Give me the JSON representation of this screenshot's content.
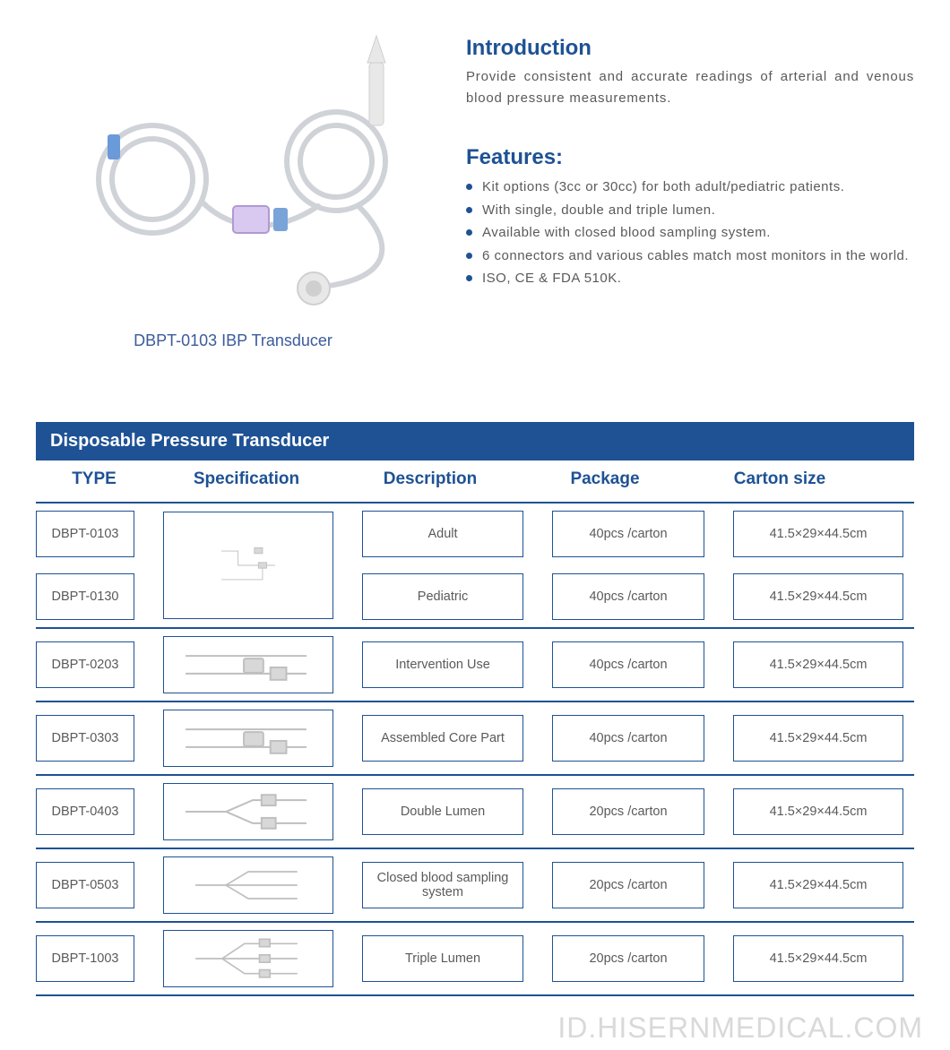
{
  "colors": {
    "primary": "#1e5294",
    "text": "#5a5a5a",
    "border": "#1e5294",
    "bg": "#ffffff",
    "watermark": "#d9d9d9"
  },
  "product": {
    "caption": "DBPT-0103 IBP Transducer"
  },
  "intro": {
    "title": "Introduction",
    "text": "Provide consistent and accurate readings of arterial and venous blood pressure measurements."
  },
  "features": {
    "title": "Features:",
    "items": [
      "Kit options (3cc or 30cc) for both adult/pediatric patients.",
      "With single, double and triple lumen.",
      "Available with closed blood sampling system.",
      "6 connectors and various cables match most monitors in the world.",
      "ISO, CE & FDA 510K."
    ]
  },
  "table": {
    "title": "Disposable Pressure Transducer",
    "headers": {
      "type": "TYPE",
      "spec": "Specification",
      "desc": "Description",
      "pkg": "Package",
      "carton": "Carton  size"
    },
    "rows": [
      {
        "types": [
          "DBPT-0103",
          "DBPT-0130"
        ],
        "spec_diagram": "single",
        "descs": [
          "Adult",
          "Pediatric"
        ],
        "pkgs": [
          "40pcs /carton",
          "40pcs /carton"
        ],
        "cartons": [
          "41.5×29×44.5cm",
          "41.5×29×44.5cm"
        ],
        "tall": true
      },
      {
        "types": [
          "DBPT-0203"
        ],
        "spec_diagram": "short",
        "descs": [
          "Intervention Use"
        ],
        "pkgs": [
          "40pcs /carton"
        ],
        "cartons": [
          "41.5×29×44.5cm"
        ]
      },
      {
        "types": [
          "DBPT-0303"
        ],
        "spec_diagram": "core",
        "descs": [
          "Assembled Core Part"
        ],
        "pkgs": [
          "40pcs /carton"
        ],
        "cartons": [
          "41.5×29×44.5cm"
        ]
      },
      {
        "types": [
          "DBPT-0403"
        ],
        "spec_diagram": "double",
        "descs": [
          "Double Lumen"
        ],
        "pkgs": [
          "20pcs /carton"
        ],
        "cartons": [
          "41.5×29×44.5cm"
        ]
      },
      {
        "types": [
          "DBPT-0503"
        ],
        "spec_diagram": "closed",
        "descs": [
          "Closed blood sampling system"
        ],
        "pkgs": [
          "20pcs /carton"
        ],
        "cartons": [
          "41.5×29×44.5cm"
        ]
      },
      {
        "types": [
          "DBPT-1003"
        ],
        "spec_diagram": "triple",
        "descs": [
          "Triple Lumen"
        ],
        "pkgs": [
          "20pcs /carton"
        ],
        "cartons": [
          "41.5×29×44.5cm"
        ]
      }
    ]
  },
  "watermark": "ID.HISERNMEDICAL.COM"
}
